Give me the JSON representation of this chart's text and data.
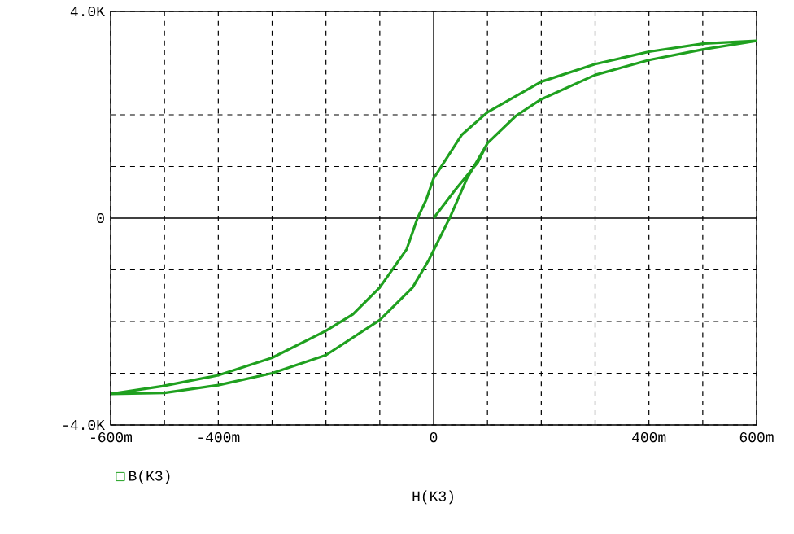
{
  "chart_data": {
    "type": "line",
    "xlabel": "H(K3)",
    "x": [
      0,
      41,
      82,
      100,
      153,
      200,
      300,
      400,
      503,
      600,
      503,
      400,
      300,
      200,
      100,
      52,
      0,
      -14,
      -30,
      -50,
      -100,
      -150,
      -200,
      -300,
      -400,
      -504,
      -600,
      -500,
      -400,
      -300,
      -200,
      -100,
      -39,
      -9,
      11,
      31,
      62,
      100,
      153,
      200,
      300,
      400,
      503,
      600
    ],
    "series": [
      {
        "name": "B(K3)",
        "color": "#1fa01f",
        "values": [
          0,
          560,
          1080,
          1450,
          1980,
          2300,
          2770,
          3060,
          3270,
          3430,
          3380,
          3220,
          2980,
          2640,
          2050,
          1610,
          770,
          350,
          0,
          -600,
          -1340,
          -1860,
          -2180,
          -2700,
          -3040,
          -3250,
          -3400,
          -3380,
          -3230,
          -3000,
          -2650,
          -1970,
          -1340,
          -810,
          -390,
          30,
          770,
          1450,
          1980,
          2300,
          2770,
          3060,
          3270,
          3430
        ]
      }
    ],
    "xlim": [
      -600,
      600
    ],
    "xticks": [
      {
        "value": -600,
        "label": "-600m"
      },
      {
        "value": -500,
        "label": null
      },
      {
        "value": -400,
        "label": "-400m"
      },
      {
        "value": -300,
        "label": null
      },
      {
        "value": -200,
        "label": null
      },
      {
        "value": -100,
        "label": null
      },
      0,
      {
        "value": 100,
        "label": null
      },
      {
        "value": 200,
        "label": null
      },
      {
        "value": 300,
        "label": null
      },
      {
        "value": 400,
        "label": "400m"
      },
      {
        "value": 500,
        "label": null
      },
      {
        "value": 600,
        "label": "600m"
      }
    ],
    "ylim": [
      -4000,
      4000
    ],
    "yticks": [
      {
        "value": -4000,
        "label": "-4.0K"
      },
      {
        "value": -3000,
        "label": null
      },
      {
        "value": -2000,
        "label": null
      },
      {
        "value": -1000,
        "label": null
      },
      0,
      {
        "value": 1000,
        "label": null
      },
      {
        "value": 2000,
        "label": null
      },
      {
        "value": 3000,
        "label": null
      },
      {
        "value": 4000,
        "label": "4.0K"
      }
    ],
    "grid": true,
    "legend": "bottom left"
  }
}
